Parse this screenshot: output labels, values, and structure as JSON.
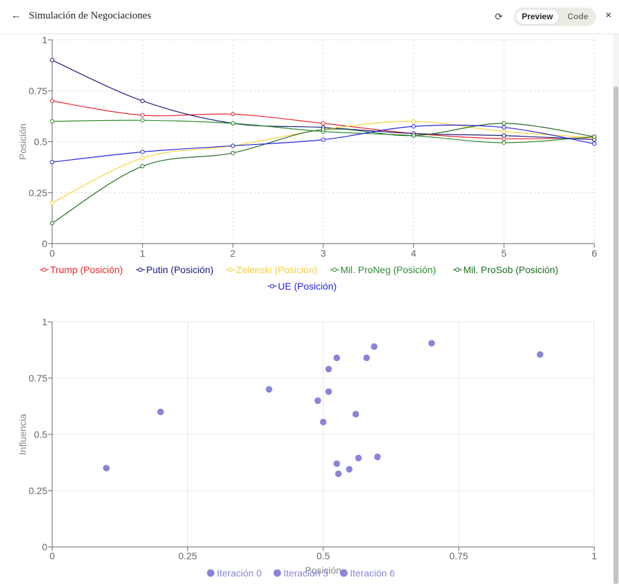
{
  "header": {
    "back_icon": "←",
    "title": "Simulación de Negociaciones",
    "refresh_icon": "⟳",
    "preview_label": "Preview",
    "code_label": "Code",
    "close_icon": "×"
  },
  "chart_data": [
    {
      "type": "line",
      "ylabel": "Posición",
      "xlabel": "",
      "x": [
        0,
        1,
        2,
        3,
        4,
        5,
        6
      ],
      "xlim": [
        0,
        6
      ],
      "ylim": [
        0,
        1
      ],
      "yticks": [
        "0",
        "0.25",
        "0.5",
        "0.75",
        "1"
      ],
      "xticks": [
        "0",
        "1",
        "2",
        "3",
        "4",
        "5",
        "6"
      ],
      "grid": true,
      "legend_position": "bottom",
      "series": [
        {
          "name": "Trump (Posición)",
          "color": "#e8262a",
          "values": [
            0.7,
            0.63,
            0.635,
            0.59,
            0.54,
            0.515,
            0.52
          ]
        },
        {
          "name": "Putin (Posición)",
          "color": "#18187a",
          "values": [
            0.9,
            0.7,
            0.59,
            0.57,
            0.54,
            0.53,
            0.51
          ]
        },
        {
          "name": "Zelenski (Posición)",
          "color": "#f5d23a",
          "values": [
            0.2,
            0.42,
            0.48,
            0.56,
            0.6,
            0.55,
            0.52
          ]
        },
        {
          "name": "Mil. ProNeg (Posición)",
          "color": "#2e8b2e",
          "values": [
            0.6,
            0.605,
            0.59,
            0.55,
            0.53,
            0.495,
            0.525
          ]
        },
        {
          "name": "Mil. ProSob (Posición)",
          "color": "#236b23",
          "values": [
            0.1,
            0.38,
            0.445,
            0.56,
            0.53,
            0.59,
            0.525
          ]
        },
        {
          "name": "UE (Posición)",
          "color": "#2222dd",
          "values": [
            0.4,
            0.45,
            0.48,
            0.51,
            0.575,
            0.57,
            0.49
          ]
        }
      ]
    },
    {
      "type": "scatter",
      "xlabel": "Posición",
      "ylabel": "Influencia",
      "xlim": [
        0,
        1
      ],
      "ylim": [
        0,
        1
      ],
      "xticks": [
        "0",
        "0.25",
        "0.5",
        "0.75",
        "1"
      ],
      "yticks": [
        "0",
        "0.25",
        "0.5",
        "0.75",
        "1"
      ],
      "grid": true,
      "legend_position": "bottom",
      "color": "#8884d8",
      "series": [
        {
          "name": "Iteración 0",
          "points": [
            [
              0.1,
              0.35
            ],
            [
              0.2,
              0.6
            ],
            [
              0.4,
              0.7
            ],
            [
              0.6,
              0.4
            ],
            [
              0.7,
              0.905
            ],
            [
              0.9,
              0.855
            ]
          ]
        },
        {
          "name": "Iteración 3",
          "points": [
            [
              0.49,
              0.65
            ],
            [
              0.5,
              0.555
            ],
            [
              0.51,
              0.69
            ],
            [
              0.51,
              0.79
            ],
            [
              0.525,
              0.84
            ],
            [
              0.525,
              0.37
            ],
            [
              0.528,
              0.325
            ],
            [
              0.548,
              0.345
            ],
            [
              0.56,
              0.59
            ],
            [
              0.565,
              0.395
            ]
          ]
        },
        {
          "name": "Iteración 6",
          "points": [
            [
              0.58,
              0.84
            ],
            [
              0.594,
              0.89
            ]
          ]
        }
      ]
    }
  ]
}
